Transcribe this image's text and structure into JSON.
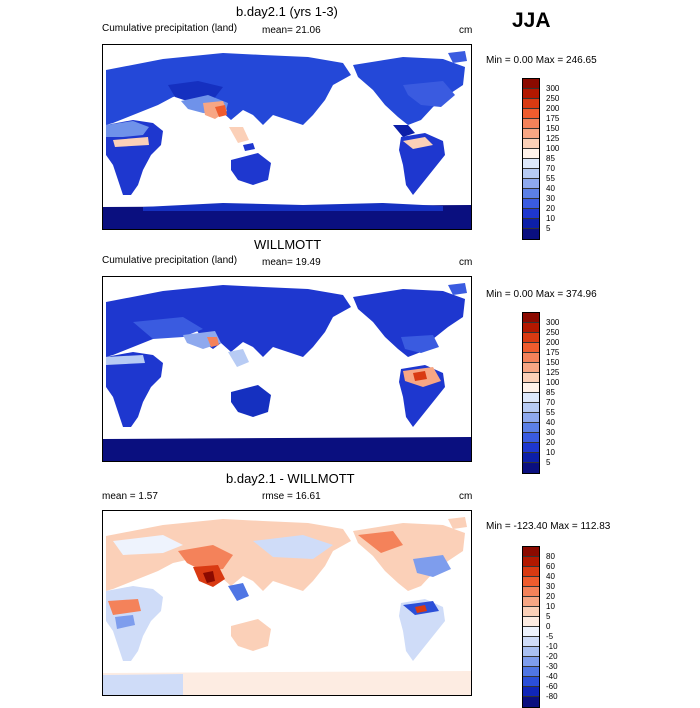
{
  "season": "JJA",
  "unit": "cm",
  "panels": [
    {
      "title": "b.day2.1 (yrs 1-3)",
      "left_label": "Cumulative precipitation (land)",
      "mid_label": "mean=  21.06",
      "unit": "cm",
      "minmax": "Min =    0.00 Max = 246.65",
      "colorbar": {
        "labels": [
          "300",
          "250",
          "200",
          "175",
          "150",
          "125",
          "100",
          "85",
          "70",
          "55",
          "40",
          "30",
          "20",
          "10",
          "5"
        ],
        "colors": [
          "#8b0a00",
          "#b21800",
          "#d93a12",
          "#ef5c2e",
          "#f4825a",
          "#f7a684",
          "#fbd0b8",
          "#fff2ea",
          "#dde8fb",
          "#b7cbf4",
          "#8ea9ee",
          "#5c80e6",
          "#3a5be0",
          "#1e37cf",
          "#0c1fa8",
          "#0a0f7f"
        ]
      }
    },
    {
      "title": "WILLMOTT",
      "left_label": "Cumulative precipitation (land)",
      "mid_label": "mean=  19.49",
      "unit": "cm",
      "minmax": "Min =    0.00 Max = 374.96",
      "colorbar": {
        "labels": [
          "300",
          "250",
          "200",
          "175",
          "150",
          "125",
          "100",
          "85",
          "70",
          "55",
          "40",
          "30",
          "20",
          "10",
          "5"
        ],
        "colors": [
          "#8b0a00",
          "#b21800",
          "#d93a12",
          "#ef5c2e",
          "#f4825a",
          "#f7a684",
          "#fbd0b8",
          "#fff2ea",
          "#dde8fb",
          "#b7cbf4",
          "#8ea9ee",
          "#5c80e6",
          "#3a5be0",
          "#1e37cf",
          "#0c1fa8",
          "#0a0f7f"
        ]
      }
    },
    {
      "title": "b.day2.1 - WILLMOTT",
      "left_label": "mean =   1.57",
      "mid_label": "rmse =  16.61",
      "unit": "cm",
      "minmax": "Min = -123.40 Max = 112.83",
      "colorbar": {
        "labels": [
          "80",
          "60",
          "40",
          "30",
          "20",
          "10",
          "5",
          "0",
          "-5",
          "-10",
          "-20",
          "-30",
          "-40",
          "-60",
          "-80"
        ],
        "colors": [
          "#8b0a00",
          "#b21800",
          "#d93a12",
          "#ef5c2e",
          "#f4825a",
          "#f7a684",
          "#fbd0b8",
          "#fdece2",
          "#eef3fd",
          "#cfdcf8",
          "#a9c0f2",
          "#7e9ded",
          "#5076e4",
          "#2b4fd8",
          "#1026b8",
          "#0a0f7f"
        ]
      }
    }
  ]
}
